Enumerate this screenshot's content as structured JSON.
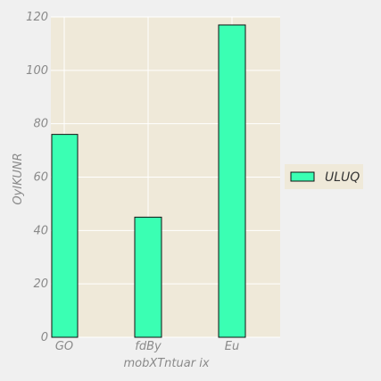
{
  "chart_data": {
    "type": "bar",
    "categories": [
      "GO",
      "fdBy",
      "Eu"
    ],
    "series": [
      {
        "name": "ULUQ",
        "values": [
          76,
          45,
          117
        ]
      }
    ],
    "xlabel": "mobXTntuar  ix",
    "ylabel": "OyIKUNR",
    "ylim": [
      0,
      120
    ],
    "yticks": [
      0,
      20,
      40,
      60,
      80,
      100,
      120
    ],
    "grid": true,
    "legend": "right, outside plot",
    "colors": {
      "bar": "#3affb3",
      "bar_edge": "#111111",
      "plot_bg": "#efe9d9",
      "page_bg": "#f0f0f0",
      "grid": "#ffffff",
      "text": "#8a8a8a"
    }
  }
}
